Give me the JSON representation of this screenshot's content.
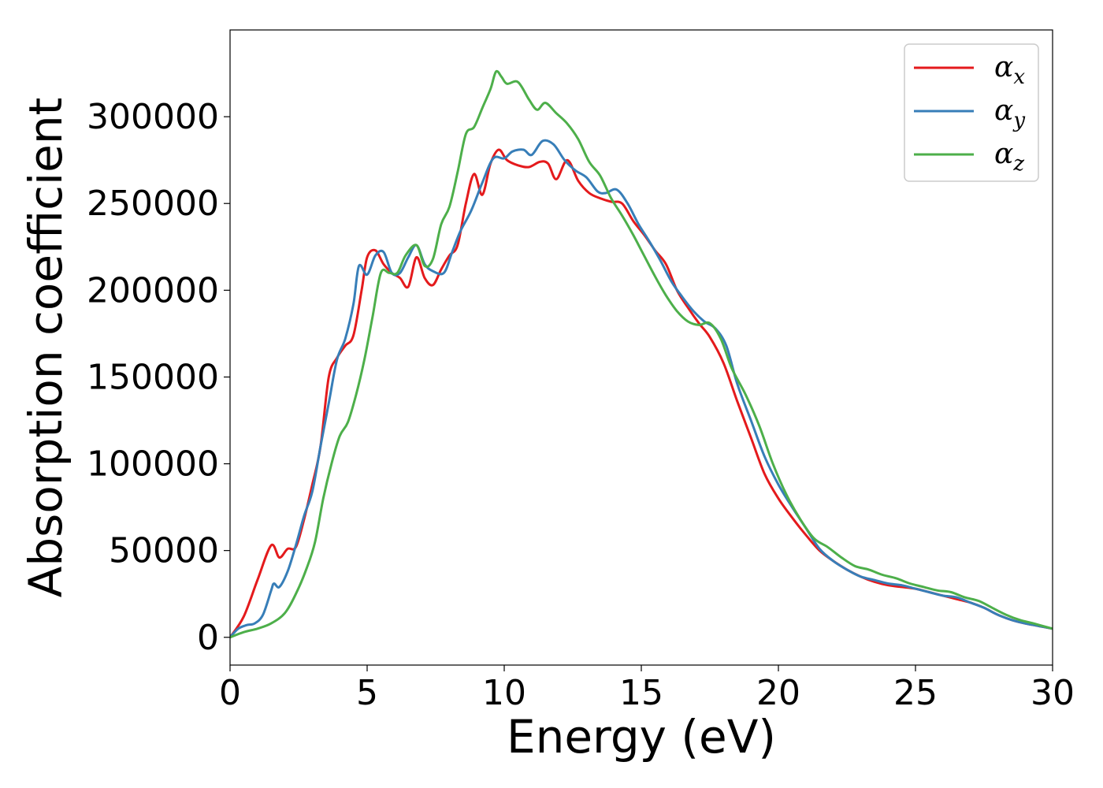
{
  "chart_data": {
    "type": "line",
    "title": "",
    "xlabel": "Energy (eV)",
    "ylabel": "Absorption coefficient",
    "xlim": [
      0,
      30
    ],
    "ylim": [
      -16000,
      350000
    ],
    "xticks": [
      0,
      5,
      10,
      15,
      20,
      25,
      30
    ],
    "yticks": [
      0,
      50000,
      100000,
      150000,
      200000,
      250000,
      300000
    ],
    "grid": false,
    "legend_position": "top-right",
    "series": [
      {
        "name": "α",
        "subscript": "x",
        "color": "#e41a1c",
        "points": [
          [
            0,
            0
          ],
          [
            0.5,
            12000
          ],
          [
            1.0,
            33000
          ],
          [
            1.5,
            53000
          ],
          [
            1.8,
            46000
          ],
          [
            2.1,
            51000
          ],
          [
            2.4,
            52000
          ],
          [
            2.7,
            68000
          ],
          [
            3.0,
            88000
          ],
          [
            3.3,
            110000
          ],
          [
            3.6,
            150000
          ],
          [
            3.9,
            161000
          ],
          [
            4.2,
            168000
          ],
          [
            4.5,
            174000
          ],
          [
            4.8,
            200000
          ],
          [
            5.0,
            219000
          ],
          [
            5.3,
            223000
          ],
          [
            5.6,
            215000
          ],
          [
            5.9,
            210000
          ],
          [
            6.2,
            207000
          ],
          [
            6.5,
            202000
          ],
          [
            6.8,
            219000
          ],
          [
            7.1,
            207000
          ],
          [
            7.4,
            203000
          ],
          [
            7.7,
            212000
          ],
          [
            8.0,
            220000
          ],
          [
            8.3,
            226000
          ],
          [
            8.6,
            250000
          ],
          [
            8.9,
            267000
          ],
          [
            9.2,
            255000
          ],
          [
            9.5,
            273000
          ],
          [
            9.8,
            281000
          ],
          [
            10.1,
            275000
          ],
          [
            10.5,
            272000
          ],
          [
            10.9,
            271000
          ],
          [
            11.3,
            274000
          ],
          [
            11.6,
            273000
          ],
          [
            11.9,
            264000
          ],
          [
            12.3,
            275000
          ],
          [
            12.7,
            263000
          ],
          [
            13.1,
            256000
          ],
          [
            13.5,
            253000
          ],
          [
            13.9,
            251000
          ],
          [
            14.3,
            250000
          ],
          [
            14.7,
            240000
          ],
          [
            15.1,
            232000
          ],
          [
            15.5,
            223000
          ],
          [
            15.9,
            215000
          ],
          [
            16.3,
            200000
          ],
          [
            16.7,
            190000
          ],
          [
            17.1,
            181000
          ],
          [
            17.5,
            173000
          ],
          [
            18.0,
            158000
          ],
          [
            18.5,
            136000
          ],
          [
            19.0,
            115000
          ],
          [
            19.5,
            94000
          ],
          [
            20.0,
            80000
          ],
          [
            20.5,
            69000
          ],
          [
            21.0,
            59000
          ],
          [
            21.5,
            50000
          ],
          [
            22.0,
            44000
          ],
          [
            22.5,
            39000
          ],
          [
            23.0,
            35000
          ],
          [
            23.5,
            32000
          ],
          [
            24.0,
            30000
          ],
          [
            24.5,
            29000
          ],
          [
            25.0,
            28000
          ],
          [
            25.5,
            26000
          ],
          [
            26.0,
            24000
          ],
          [
            26.5,
            22000
          ],
          [
            27.0,
            20000
          ],
          [
            27.5,
            17000
          ],
          [
            28.0,
            13000
          ],
          [
            28.5,
            10000
          ],
          [
            29.0,
            8000
          ],
          [
            29.5,
            6500
          ],
          [
            30.0,
            5000
          ]
        ]
      },
      {
        "name": "α",
        "subscript": "y",
        "color": "#377eb8",
        "points": [
          [
            0,
            0
          ],
          [
            0.3,
            5000
          ],
          [
            0.6,
            7000
          ],
          [
            0.9,
            8000
          ],
          [
            1.2,
            13000
          ],
          [
            1.5,
            27000
          ],
          [
            1.6,
            31000
          ],
          [
            1.8,
            29000
          ],
          [
            2.1,
            38000
          ],
          [
            2.4,
            53000
          ],
          [
            2.7,
            70000
          ],
          [
            3.0,
            84000
          ],
          [
            3.3,
            110000
          ],
          [
            3.6,
            135000
          ],
          [
            3.9,
            160000
          ],
          [
            4.2,
            172000
          ],
          [
            4.5,
            192000
          ],
          [
            4.7,
            214000
          ],
          [
            5.0,
            209000
          ],
          [
            5.3,
            220000
          ],
          [
            5.6,
            222000
          ],
          [
            5.9,
            210000
          ],
          [
            6.2,
            210000
          ],
          [
            6.5,
            219000
          ],
          [
            6.8,
            226000
          ],
          [
            7.1,
            215000
          ],
          [
            7.4,
            211000
          ],
          [
            7.8,
            210000
          ],
          [
            8.1,
            222000
          ],
          [
            8.4,
            234000
          ],
          [
            8.8,
            246000
          ],
          [
            9.2,
            262000
          ],
          [
            9.6,
            276000
          ],
          [
            10.0,
            276000
          ],
          [
            10.3,
            280000
          ],
          [
            10.7,
            281000
          ],
          [
            11.0,
            278000
          ],
          [
            11.4,
            286000
          ],
          [
            11.8,
            284000
          ],
          [
            12.2,
            275000
          ],
          [
            12.6,
            269000
          ],
          [
            13.0,
            265000
          ],
          [
            13.4,
            257000
          ],
          [
            13.7,
            256000
          ],
          [
            14.1,
            258000
          ],
          [
            14.5,
            250000
          ],
          [
            14.9,
            238000
          ],
          [
            15.3,
            228000
          ],
          [
            15.7,
            217000
          ],
          [
            16.1,
            205000
          ],
          [
            16.5,
            196000
          ],
          [
            16.9,
            188000
          ],
          [
            17.3,
            182000
          ],
          [
            17.7,
            178000
          ],
          [
            18.1,
            168000
          ],
          [
            18.5,
            146000
          ],
          [
            19.0,
            125000
          ],
          [
            19.5,
            104000
          ],
          [
            20.0,
            88000
          ],
          [
            20.5,
            75000
          ],
          [
            21.0,
            63000
          ],
          [
            21.5,
            51000
          ],
          [
            22.0,
            44000
          ],
          [
            22.5,
            39000
          ],
          [
            23.0,
            35000
          ],
          [
            23.5,
            33000
          ],
          [
            24.0,
            31000
          ],
          [
            24.5,
            30000
          ],
          [
            25.0,
            28000
          ],
          [
            25.5,
            26000
          ],
          [
            26.0,
            24000
          ],
          [
            26.5,
            23000
          ],
          [
            27.0,
            20000
          ],
          [
            27.5,
            17000
          ],
          [
            28.0,
            13000
          ],
          [
            28.5,
            10000
          ],
          [
            29.0,
            8000
          ],
          [
            29.5,
            6500
          ],
          [
            30.0,
            5000
          ]
        ]
      },
      {
        "name": "α",
        "subscript": "z",
        "color": "#4daf4a",
        "points": [
          [
            0,
            0
          ],
          [
            0.5,
            3000
          ],
          [
            1.0,
            5000
          ],
          [
            1.5,
            8000
          ],
          [
            2.0,
            14000
          ],
          [
            2.4,
            25000
          ],
          [
            2.8,
            40000
          ],
          [
            3.1,
            55000
          ],
          [
            3.4,
            80000
          ],
          [
            3.7,
            100000
          ],
          [
            4.0,
            116000
          ],
          [
            4.3,
            124000
          ],
          [
            4.6,
            140000
          ],
          [
            4.9,
            160000
          ],
          [
            5.2,
            185000
          ],
          [
            5.5,
            210000
          ],
          [
            5.8,
            210000
          ],
          [
            6.1,
            210000
          ],
          [
            6.4,
            220000
          ],
          [
            6.8,
            226000
          ],
          [
            7.1,
            214000
          ],
          [
            7.4,
            218000
          ],
          [
            7.7,
            238000
          ],
          [
            8.0,
            248000
          ],
          [
            8.3,
            268000
          ],
          [
            8.6,
            290000
          ],
          [
            8.9,
            294000
          ],
          [
            9.2,
            305000
          ],
          [
            9.5,
            316000
          ],
          [
            9.7,
            326000
          ],
          [
            9.9,
            323000
          ],
          [
            10.1,
            319000
          ],
          [
            10.5,
            320000
          ],
          [
            10.9,
            310000
          ],
          [
            11.2,
            304000
          ],
          [
            11.5,
            308000
          ],
          [
            11.9,
            302000
          ],
          [
            12.3,
            296000
          ],
          [
            12.7,
            287000
          ],
          [
            13.1,
            274000
          ],
          [
            13.5,
            266000
          ],
          [
            13.9,
            253000
          ],
          [
            14.3,
            243000
          ],
          [
            14.7,
            232000
          ],
          [
            15.1,
            220000
          ],
          [
            15.5,
            208000
          ],
          [
            15.9,
            197000
          ],
          [
            16.3,
            188000
          ],
          [
            16.7,
            182000
          ],
          [
            17.1,
            180000
          ],
          [
            17.5,
            181000
          ],
          [
            17.9,
            172000
          ],
          [
            18.3,
            155000
          ],
          [
            18.8,
            140000
          ],
          [
            19.3,
            122000
          ],
          [
            19.8,
            100000
          ],
          [
            20.3,
            82000
          ],
          [
            20.8,
            68000
          ],
          [
            21.3,
            57000
          ],
          [
            21.8,
            52000
          ],
          [
            22.3,
            46000
          ],
          [
            22.8,
            41000
          ],
          [
            23.3,
            39000
          ],
          [
            23.8,
            36000
          ],
          [
            24.3,
            34000
          ],
          [
            24.8,
            31000
          ],
          [
            25.3,
            29000
          ],
          [
            25.8,
            27000
          ],
          [
            26.3,
            26000
          ],
          [
            26.8,
            23000
          ],
          [
            27.3,
            21000
          ],
          [
            27.8,
            17000
          ],
          [
            28.3,
            13000
          ],
          [
            28.8,
            10000
          ],
          [
            29.3,
            8000
          ],
          [
            30.0,
            5000
          ]
        ]
      }
    ]
  }
}
